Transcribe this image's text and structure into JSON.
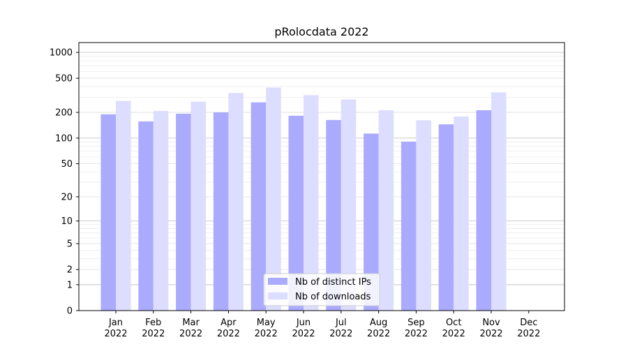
{
  "chart_data": {
    "type": "bar",
    "title": "pRolocdata 2022",
    "xlabel": "",
    "ylabel": "",
    "yscale": "log(1+y)",
    "ylim": [
      0,
      1300
    ],
    "yticks": [
      0,
      1,
      2,
      5,
      10,
      20,
      50,
      100,
      200,
      500,
      1000
    ],
    "grid": true,
    "legend_position": "bottom-center",
    "categories": [
      [
        "Jan",
        "2022"
      ],
      [
        "Feb",
        "2022"
      ],
      [
        "Mar",
        "2022"
      ],
      [
        "Apr",
        "2022"
      ],
      [
        "May",
        "2022"
      ],
      [
        "Jun",
        "2022"
      ],
      [
        "Jul",
        "2022"
      ],
      [
        "Aug",
        "2022"
      ],
      [
        "Sep",
        "2022"
      ],
      [
        "Oct",
        "2022"
      ],
      [
        "Nov",
        "2022"
      ],
      [
        "Dec",
        "2022"
      ]
    ],
    "series": [
      {
        "name": "Nb of distinct IPs",
        "color": "#aaaaff",
        "values": [
          190,
          157,
          193,
          200,
          262,
          183,
          163,
          113,
          91,
          145,
          212,
          0
        ]
      },
      {
        "name": "Nb of downloads",
        "color": "#ddddff",
        "values": [
          272,
          208,
          267,
          337,
          389,
          318,
          283,
          212,
          162,
          179,
          343,
          0
        ]
      }
    ]
  }
}
